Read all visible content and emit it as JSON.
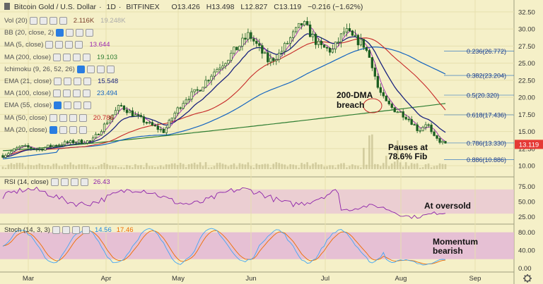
{
  "header": {
    "symbol": "Bitcoin Gold / U.S. Dollar",
    "interval": "1D",
    "exchange": "BITFINEX",
    "open": "O13.426",
    "high": "H13.498",
    "low": "L12.827",
    "close": "C13.119",
    "change": "−0.216 (−1.62%)"
  },
  "indicators": [
    {
      "label": "Vol (20)",
      "value": "2.116K",
      "value2": "19.248K",
      "value_color": "#7a3e2c"
    },
    {
      "label": "BB (20, close, 2)",
      "value": "",
      "value_color": "#333333"
    },
    {
      "label": "MA (5, close)",
      "value": "13.644",
      "value_color": "#9c27b0"
    },
    {
      "label": "MA (200, close)",
      "value": "19.103",
      "value_color": "#2e7d32"
    },
    {
      "label": "Ichimoku (9, 26, 52, 26)",
      "value": "",
      "value_color": "#333333"
    },
    {
      "label": "EMA (21, close)",
      "value": "15.548",
      "value_color": "#1a237e"
    },
    {
      "label": "MA (100, close)",
      "value": "23.494",
      "value_color": "#1565c0"
    },
    {
      "label": "EMA (55, close)",
      "value": "",
      "value_color": "#999999"
    },
    {
      "label": "MA (50, close)",
      "value": "20.786",
      "value_color": "#c62828"
    },
    {
      "label": "MA (20, close)",
      "value": "",
      "value_color": "#999999"
    }
  ],
  "price_axis": {
    "ticks": [
      "32.50",
      "30.00",
      "27.50",
      "25.00",
      "22.50",
      "20.00",
      "17.50",
      "15.00",
      "12.50",
      "10.00"
    ],
    "tick_values": [
      32.5,
      30,
      27.5,
      25,
      22.5,
      20,
      17.5,
      15,
      12.5,
      10
    ],
    "last_price": "13.119",
    "last_price_value": 13.119,
    "last_price_color": "#e53935"
  },
  "rsi_panel": {
    "label": "RSI (14, close)",
    "value": "26.43",
    "ticks": [
      "75.00",
      "50.00",
      "25.00"
    ],
    "tick_values": [
      75,
      50,
      25
    ],
    "annotation": "At oversold"
  },
  "stoch_panel": {
    "label": "Stoch (14, 3, 3)",
    "k_value": "14.56",
    "d_value": "17.46",
    "ticks": [
      "80.00",
      "40.00",
      "0.00"
    ],
    "tick_values": [
      80,
      40,
      0
    ],
    "annotation_line1": "Momentum",
    "annotation_line2": "bearish"
  },
  "fib_levels": [
    {
      "label": "0.236(26.772)",
      "value": 26.772
    },
    {
      "label": "0.382(23.204)",
      "value": 23.204
    },
    {
      "label": "0.5(20.320)",
      "value": 20.32
    },
    {
      "label": "0.618(17.436)",
      "value": 17.436
    },
    {
      "label": "0.786(13.330)",
      "value": 13.33
    },
    {
      "label": "0.886(10.886)",
      "value": 10.886
    }
  ],
  "annotations": {
    "dma_breach_line1": "200-DMA",
    "dma_breach_line2": "breach",
    "pause_line1": "Pauses at",
    "pause_line2": "78.6% Fib"
  },
  "time_axis": {
    "labels": [
      "Mar",
      "Apr",
      "May",
      "Jun",
      "Jul",
      "Aug",
      "Sep"
    ]
  },
  "icons": {
    "settings": "gear-icon",
    "logo": "tradingview-logo-icon"
  },
  "colors": {
    "background": "#f5f0c8",
    "candle_up": "#1b5e20",
    "candle_down": "#1b5e20",
    "rsi_line": "#8e24aa",
    "rsi_band": "#e7c3d6",
    "stoch_k": "#42a5f5",
    "stoch_d": "#ef6c00",
    "stoch_band": "#e3b7d6",
    "fib_line": "#1565c0",
    "ma5": "#9c27b0",
    "ema21": "#1a237e",
    "ma50": "#c62828",
    "ma100": "#1565c0",
    "ma200": "#2e7d32"
  }
}
